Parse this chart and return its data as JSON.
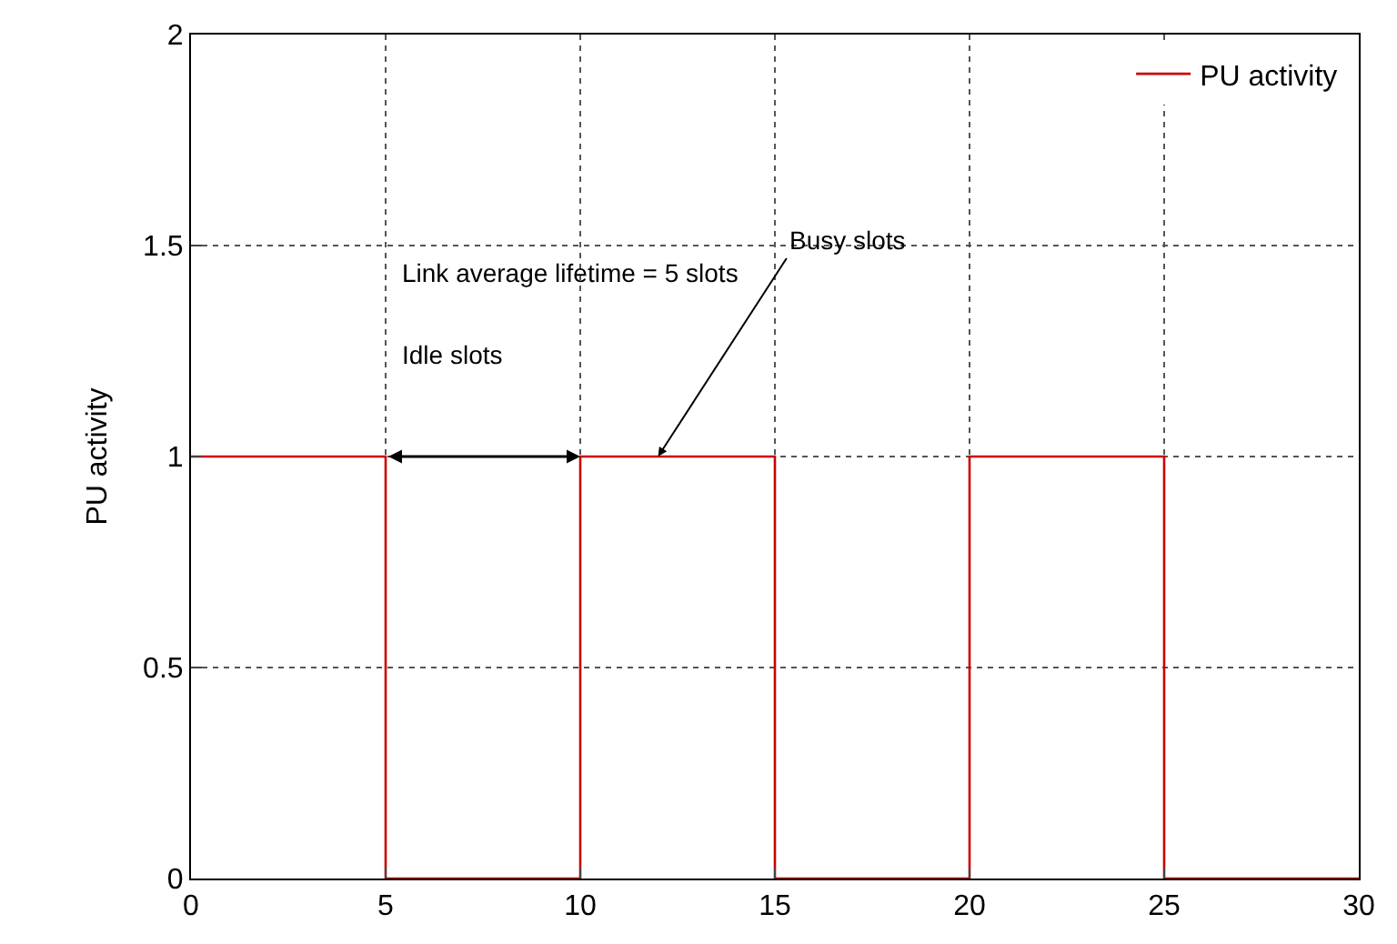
{
  "chart_data": {
    "type": "step",
    "ylabel": "PU activity",
    "x": [
      0,
      5,
      10,
      15,
      20,
      25,
      30
    ],
    "series": [
      {
        "name": "PU activity",
        "color": "#cc0000",
        "values": [
          1,
          0,
          1,
          0,
          1,
          0,
          0
        ]
      }
    ],
    "xlim": [
      0,
      30
    ],
    "xticks": [
      0,
      5,
      10,
      15,
      20,
      25,
      30
    ],
    "ylim": [
      0,
      2
    ],
    "yticks": [
      0,
      0.5,
      1,
      1.5,
      2
    ],
    "grid": true,
    "legend": "top right",
    "annotations": [
      "Link average lifetime = 5 slots",
      "Idle slots",
      {
        "text": "Busy slots",
        "x": 12,
        "y": 1
      }
    ]
  }
}
